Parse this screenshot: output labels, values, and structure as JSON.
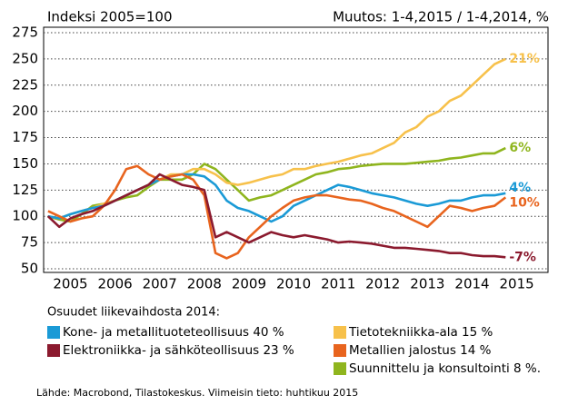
{
  "chart_data": {
    "type": "line",
    "title": "Indeksi 2005=100",
    "subtitle": "Muutos: 1-4,2015 / 1-4,2014, %",
    "legend_title": "Osuudet liikevaihdosta 2014:",
    "source": "Lähde: Macrobond, Tilastokeskus. Viimeisin tieto: huhtikuu 2015",
    "x": [
      2005,
      2005.25,
      2005.5,
      2005.75,
      2006,
      2006.25,
      2006.5,
      2006.75,
      2007,
      2007.25,
      2007.5,
      2007.75,
      2008,
      2008.25,
      2008.5,
      2008.75,
      2009,
      2009.25,
      2009.5,
      2009.75,
      2010,
      2010.25,
      2010.5,
      2010.75,
      2011,
      2011.25,
      2011.5,
      2011.75,
      2012,
      2012.25,
      2012.5,
      2012.75,
      2013,
      2013.25,
      2013.5,
      2013.75,
      2014,
      2014.25,
      2014.5,
      2014.75,
      2015,
      2015.25
    ],
    "xlim": [
      2004.9,
      2016.2
    ],
    "xticks": [
      {
        "value": 2005.5,
        "label": "2005"
      },
      {
        "value": 2006.5,
        "label": "2006"
      },
      {
        "value": 2007.5,
        "label": "2007"
      },
      {
        "value": 2008.5,
        "label": "2008"
      },
      {
        "value": 2009.5,
        "label": "2009"
      },
      {
        "value": 2010.5,
        "label": "2010"
      },
      {
        "value": 2011.5,
        "label": "2011"
      },
      {
        "value": 2012.5,
        "label": "2012"
      },
      {
        "value": 2013.5,
        "label": "2013"
      },
      {
        "value": 2014.5,
        "label": "2014"
      },
      {
        "value": 2015.5,
        "label": "2015"
      }
    ],
    "ylim": [
      50,
      275
    ],
    "yticks": [
      50,
      75,
      100,
      125,
      150,
      175,
      200,
      225,
      250,
      275
    ],
    "grid": true,
    "series": [
      {
        "name": "Kone- ja metallituoteteollisuus 40 %",
        "color": "#1a9ad6",
        "end_label": "4%",
        "values": [
          100,
          98,
          102,
          105,
          108,
          110,
          115,
          120,
          125,
          130,
          135,
          138,
          140,
          140,
          138,
          130,
          115,
          108,
          105,
          100,
          95,
          100,
          110,
          115,
          120,
          125,
          130,
          128,
          125,
          122,
          120,
          118,
          115,
          112,
          110,
          112,
          115,
          115,
          118,
          120,
          120,
          122
        ]
      },
      {
        "name": "Elektroniikka- ja sähköteollisuus 23 %",
        "color": "#8b1a2e",
        "end_label": "-7%",
        "values": [
          100,
          90,
          98,
          102,
          105,
          110,
          115,
          120,
          125,
          130,
          140,
          135,
          130,
          128,
          125,
          80,
          85,
          80,
          75,
          80,
          85,
          82,
          80,
          82,
          80,
          78,
          75,
          76,
          75,
          74,
          72,
          70,
          70,
          69,
          68,
          67,
          65,
          65,
          63,
          62,
          62,
          61
        ]
      },
      {
        "name": "Tietotekniikka-ala 15 %",
        "color": "#f7c14b",
        "end_label": "21%",
        "values": [
          100,
          98,
          102,
          105,
          108,
          112,
          115,
          120,
          125,
          130,
          135,
          140,
          140,
          145,
          145,
          140,
          132,
          130,
          132,
          135,
          138,
          140,
          145,
          145,
          148,
          150,
          152,
          155,
          158,
          160,
          165,
          170,
          180,
          185,
          195,
          200,
          210,
          215,
          225,
          235,
          245,
          250
        ]
      },
      {
        "name": "Metallien jalostus 14 %",
        "color": "#e8641e",
        "end_label": "10%",
        "values": [
          105,
          100,
          95,
          98,
          100,
          110,
          125,
          145,
          148,
          140,
          135,
          138,
          140,
          135,
          120,
          65,
          60,
          65,
          80,
          90,
          100,
          108,
          115,
          118,
          120,
          120,
          118,
          116,
          115,
          112,
          108,
          105,
          100,
          95,
          90,
          100,
          110,
          108,
          105,
          108,
          110,
          118
        ]
      },
      {
        "name": "Suunnittelu ja konsultointi 8 %.",
        "color": "#8fb51e",
        "end_label": "6%",
        "values": [
          100,
          97,
          95,
          102,
          110,
          112,
          115,
          118,
          120,
          128,
          135,
          135,
          135,
          140,
          150,
          145,
          135,
          125,
          115,
          118,
          120,
          125,
          130,
          135,
          140,
          142,
          145,
          146,
          148,
          149,
          150,
          150,
          150,
          151,
          152,
          153,
          155,
          156,
          158,
          160,
          160,
          165
        ]
      }
    ]
  }
}
